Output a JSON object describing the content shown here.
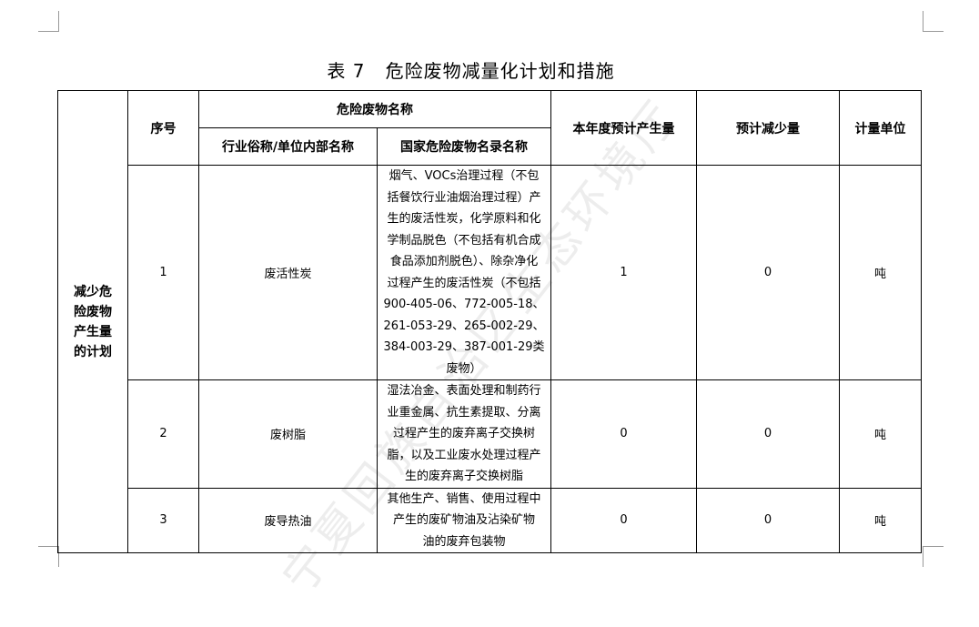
{
  "title": "表 7   危险废物减量化计划和措施",
  "watermark": "宁夏回族自治区生态环境厅",
  "headers": {
    "serial": "序号",
    "waste_name": "危险废物名称",
    "common_name": "行业俗称/单位内部名称",
    "national_name": "国家危险废物名录名称",
    "annual_output": "本年度预计产生量",
    "expected_reduction": "预计减少量",
    "unit": "计量单位"
  },
  "side_label": "减少危\n险废物\n产生量\n的计划",
  "rows": [
    {
      "serial": "1",
      "common_name": "废活性炭",
      "national_name": "烟气、VOCs治理过程（不包\n括餐饮行业油烟治理过程）产\n生的废活性炭，化学原料和化\n学制品脱色（不包括有机合成\n食品添加剂脱色）、除杂净化\n过程产生的废活性炭（不包括\n900-405-06、772-005-18、\n261-053-29、265-002-29、\n384-003-29、387-001-29类\n废物）",
      "annual_output": "1",
      "expected_reduction": "0",
      "unit": "吨"
    },
    {
      "serial": "2",
      "common_name": "废树脂",
      "national_name": "湿法冶金、表面处理和制药行\n业重金属、抗生素提取、分离\n过程产生的废弃离子交换树\n脂，以及工业废水处理过程产\n生的废弃离子交换树脂",
      "annual_output": "0",
      "expected_reduction": "0",
      "unit": "吨"
    },
    {
      "serial": "3",
      "common_name": "废导热油",
      "national_name": "其他生产、销售、使用过程中\n产生的废矿物油及沾染矿物\n油的废弃包装物",
      "annual_output": "0",
      "expected_reduction": "0",
      "unit": "吨"
    }
  ]
}
